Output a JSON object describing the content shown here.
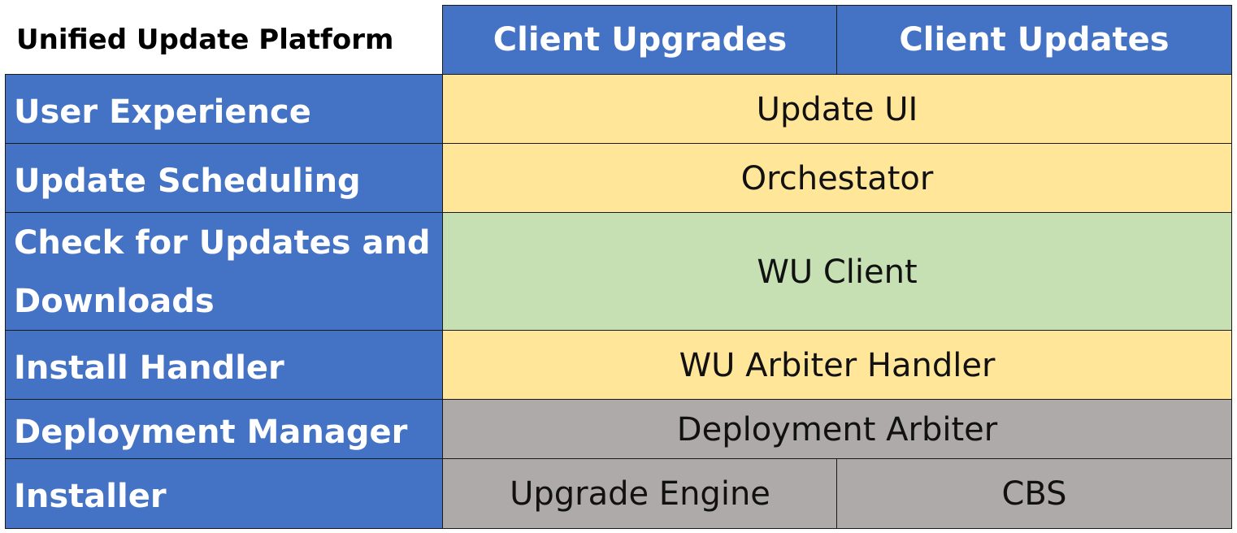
{
  "title": "Unified Update Platform",
  "columns": [
    "Client Upgrades",
    "Client Updates"
  ],
  "colors": {
    "header": "#4472C4",
    "yellow": "#FFE699",
    "green": "#C6E0B4",
    "grey": "#AEAAAA"
  },
  "rows": [
    {
      "label": "User Experience",
      "cells": [
        "Update UI"
      ]
    },
    {
      "label": "Update Scheduling",
      "cells": [
        "Orchestator"
      ]
    },
    {
      "label": "Check for Updates and Downloads",
      "cells": [
        "WU Client"
      ]
    },
    {
      "label": "Install Handler",
      "cells": [
        "WU Arbiter Handler"
      ]
    },
    {
      "label": "Deployment Manager",
      "cells": [
        "Deployment Arbiter"
      ]
    },
    {
      "label": "Installer",
      "cells": [
        "Upgrade Engine",
        "CBS"
      ]
    }
  ]
}
